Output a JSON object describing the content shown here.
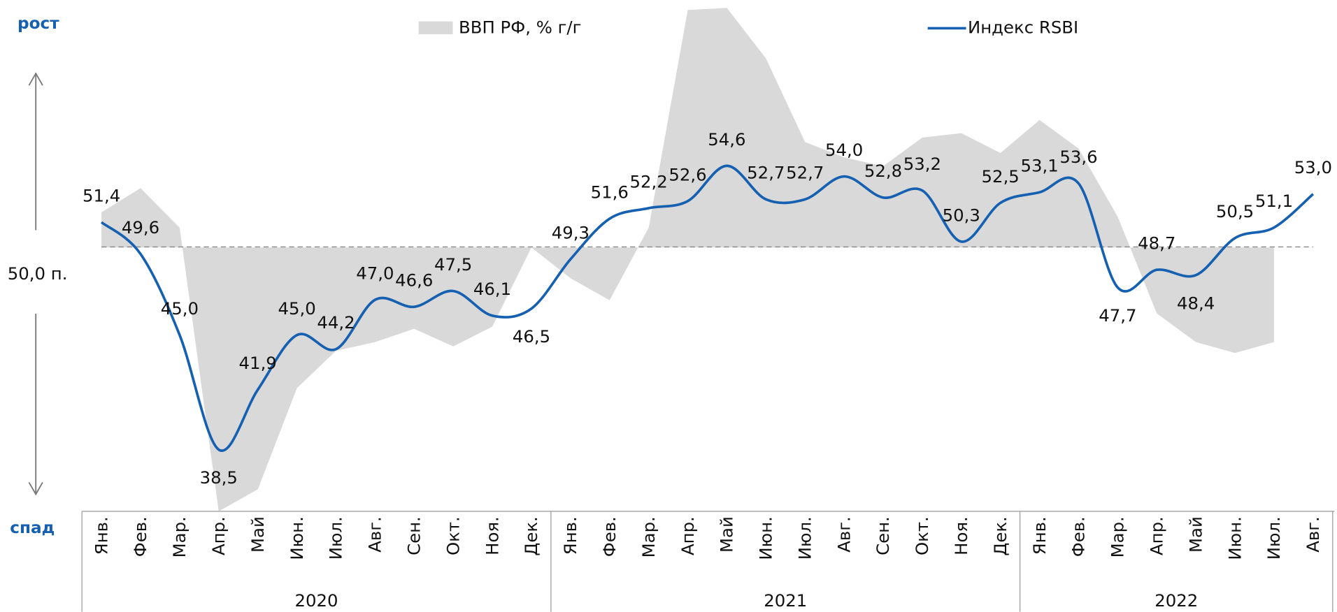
{
  "chart_data": {
    "type": "area-line",
    "top_label": "рост",
    "bottom_label": "спад",
    "reference_line": {
      "value": 50,
      "label": "50,0 п."
    },
    "categories": [
      "Янв.",
      "Фев.",
      "Мар.",
      "Апр.",
      "Май",
      "Июн.",
      "Июл.",
      "Авг.",
      "Сен.",
      "Окт.",
      "Ноя.",
      "Дек.",
      "Янв.",
      "Фев.",
      "Мар.",
      "Апр.",
      "Май",
      "Июн.",
      "Июл.",
      "Авг.",
      "Сен.",
      "Окт.",
      "Ноя.",
      "Дек.",
      "Янв.",
      "Фев.",
      "Мар.",
      "Апр.",
      "Май",
      "Июн.",
      "Июл.",
      "Авг."
    ],
    "year_labels": [
      "2020",
      "2021",
      "2022"
    ],
    "ylim": [
      35,
      64
    ],
    "y2lim": [
      -12.0,
      11.25
    ],
    "series": [
      {
        "name": "ВВП РФ, % г/г",
        "type": "area",
        "axis": "y2",
        "color": "#d9d9d9",
        "values": [
          1.6,
          2.7,
          0.9,
          -12.0,
          -11.0,
          -6.4,
          -4.7,
          -4.3,
          -3.7,
          -4.5,
          -3.6,
          0.0,
          -1.4,
          -2.4,
          0.9,
          10.8,
          10.9,
          8.6,
          4.8,
          4.1,
          3.7,
          5.0,
          5.2,
          4.3,
          5.8,
          4.5,
          1.4,
          -3.0,
          -4.3,
          -4.8,
          -4.3,
          null
        ]
      },
      {
        "name": "Индекс RSBI",
        "type": "line",
        "color": "#1560b0",
        "values": [
          51.4,
          49.6,
          45.0,
          38.5,
          41.9,
          45.0,
          44.2,
          47.0,
          46.6,
          47.5,
          46.1,
          46.5,
          49.3,
          51.6,
          52.2,
          52.6,
          54.6,
          52.7,
          52.7,
          54.0,
          52.8,
          53.2,
          50.3,
          52.5,
          53.1,
          53.6,
          47.7,
          48.7,
          48.4,
          50.5,
          51.1,
          53.0
        ],
        "value_labels": [
          "51,4",
          "49,6",
          "45,0",
          "38,5",
          "41,9",
          "45,0",
          "44,2",
          "47,0",
          "46,6",
          "47,5",
          "46,1",
          "46,5",
          "49,3",
          "51,6",
          "52,2",
          "52,6",
          "54,6",
          "52,7",
          "52,7",
          "54,0",
          "52,8",
          "53,2",
          "50,3",
          "52,5",
          "53,1",
          "53,6",
          "47,7",
          "48,7",
          "48,4",
          "50,5",
          "51,1",
          "53,0"
        ]
      }
    ]
  }
}
